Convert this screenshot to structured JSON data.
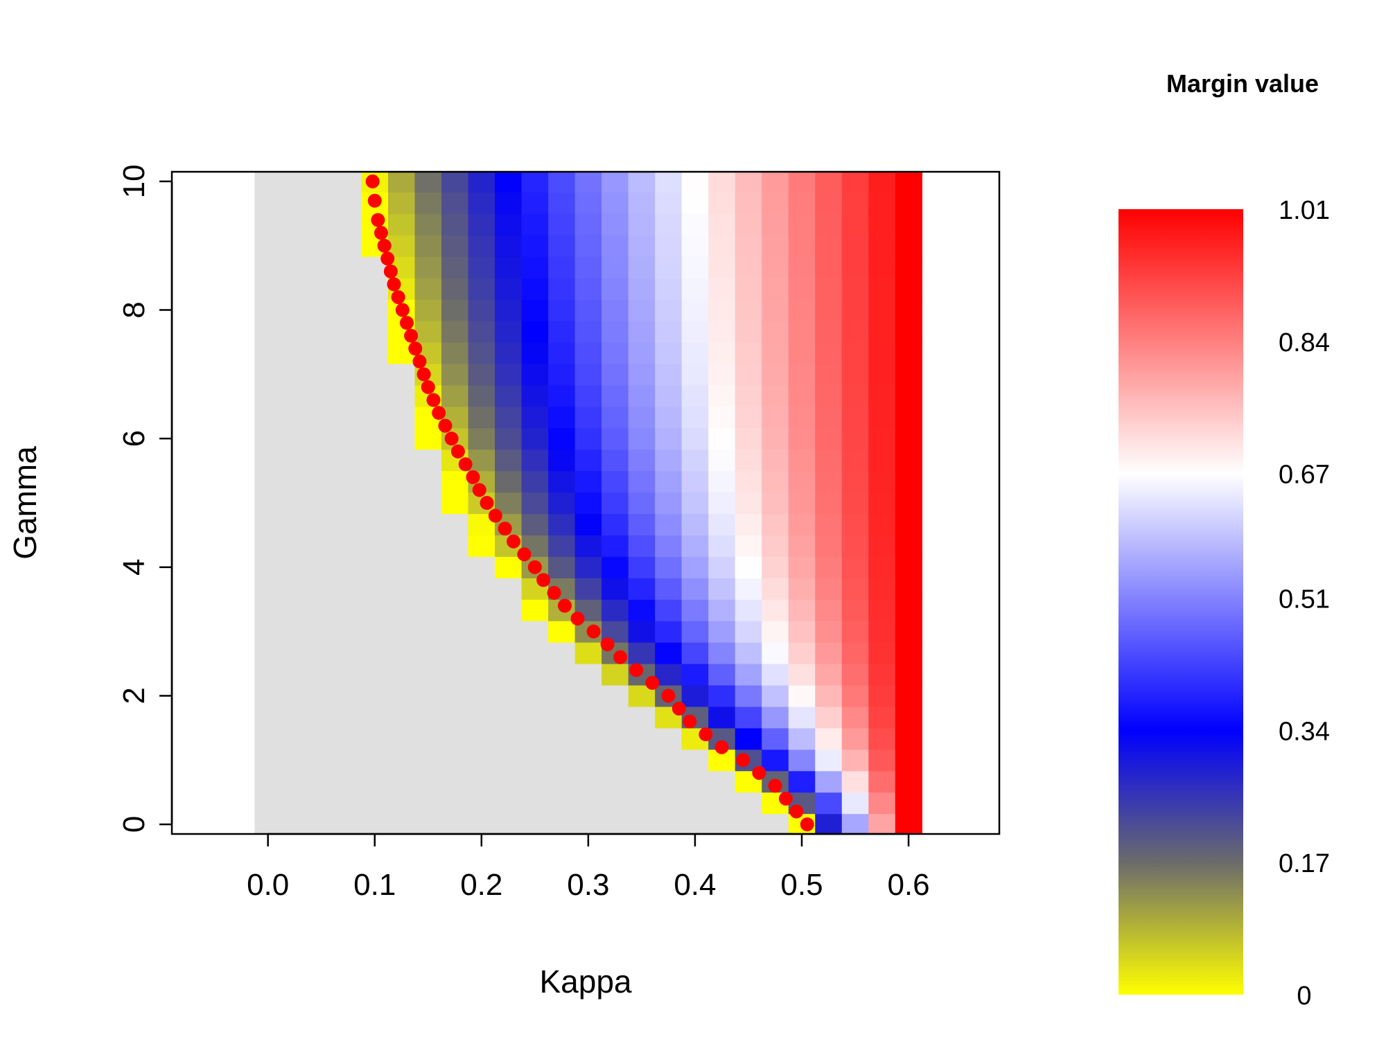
{
  "chart_data": {
    "type": "heatmap",
    "xlabel": "Kappa",
    "ylabel": "Gamma",
    "xlim": [
      -0.09,
      0.685
    ],
    "ylim": [
      -0.15,
      10.15
    ],
    "x_ticks": [
      "0.0",
      "0.1",
      "0.2",
      "0.3",
      "0.4",
      "0.5",
      "0.6"
    ],
    "y_ticks": [
      "0",
      "2",
      "4",
      "6",
      "8",
      "10"
    ],
    "grid": false,
    "x_cells": {
      "start": 0.0,
      "end": 0.6,
      "count": 25
    },
    "y_cells": {
      "start": 0.0,
      "end": 10.0,
      "count": 31
    },
    "masked_color": "#e0e0e0",
    "colorscale": {
      "title": "Margin value",
      "range": [
        0,
        1.01
      ],
      "labels": [
        "1.01",
        "0.84",
        "0.67",
        "0.51",
        "0.34",
        "0.17",
        "0"
      ],
      "stops": [
        {
          "value": 0.0,
          "color": "#ffff00"
        },
        {
          "value": 0.17,
          "color": "#6b6b6b"
        },
        {
          "value": 0.34,
          "color": "#0000ff"
        },
        {
          "value": 0.67,
          "color": "#ffffff"
        },
        {
          "value": 1.01,
          "color": "#ff0000"
        }
      ]
    },
    "boundary_gamma": [
      0,
      0.5,
      1.0,
      1.5,
      2.0,
      2.5,
      3.0,
      3.5,
      4.0,
      4.5,
      5.0,
      5.5,
      6.0,
      6.5,
      7.0,
      7.5,
      8.0,
      8.5,
      9.0,
      9.5,
      10.0
    ],
    "boundary_kappa": [
      0.505,
      0.475,
      0.425,
      0.385,
      0.345,
      0.305,
      0.275,
      0.25,
      0.225,
      0.205,
      0.188,
      0.175,
      0.16,
      0.15,
      0.14,
      0.132,
      0.125,
      0.118,
      0.112,
      0.106,
      0.098
    ],
    "series": [
      {
        "type": "scatter",
        "color": "#ff0000",
        "x": [
          0.505,
          0.495,
          0.485,
          0.475,
          0.46,
          0.445,
          0.425,
          0.41,
          0.395,
          0.385,
          0.375,
          0.36,
          0.345,
          0.33,
          0.318,
          0.305,
          0.29,
          0.278,
          0.268,
          0.258,
          0.25,
          0.24,
          0.23,
          0.222,
          0.213,
          0.205,
          0.198,
          0.192,
          0.185,
          0.178,
          0.172,
          0.166,
          0.16,
          0.155,
          0.15,
          0.146,
          0.142,
          0.138,
          0.134,
          0.13,
          0.126,
          0.122,
          0.118,
          0.115,
          0.112,
          0.109,
          0.106,
          0.103,
          0.1,
          0.098
        ],
        "y": [
          0.0,
          0.2,
          0.4,
          0.6,
          0.8,
          1.0,
          1.2,
          1.4,
          1.6,
          1.8,
          2.0,
          2.2,
          2.4,
          2.6,
          2.8,
          3.0,
          3.2,
          3.4,
          3.6,
          3.8,
          4.0,
          4.2,
          4.4,
          4.6,
          4.8,
          5.0,
          5.2,
          5.4,
          5.6,
          5.8,
          6.0,
          6.2,
          6.4,
          6.6,
          6.8,
          7.0,
          7.2,
          7.4,
          7.6,
          7.8,
          8.0,
          8.2,
          8.4,
          8.6,
          8.8,
          9.0,
          9.2,
          9.4,
          9.7,
          10.0
        ]
      }
    ]
  }
}
